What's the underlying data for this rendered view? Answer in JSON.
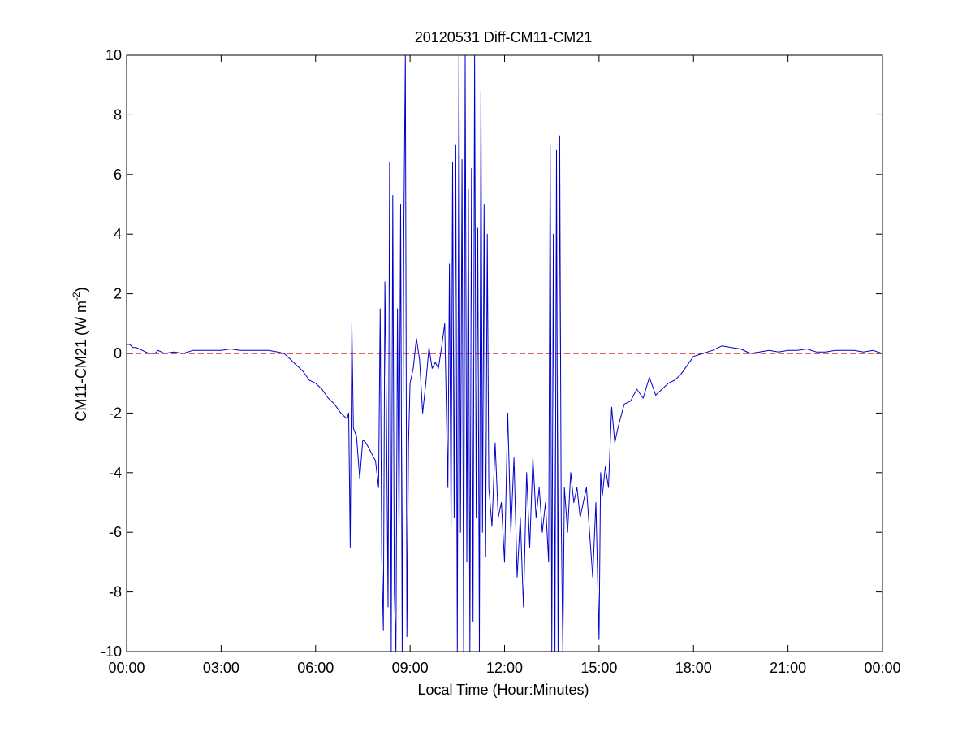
{
  "chart_data": {
    "type": "line",
    "title": "20120531 Diff-CM11-CM21",
    "xlabel": "Local Time (Hour:Minutes)",
    "ylabel": {
      "main": "CM11-CM21 (W m",
      "superscript": "-2",
      "suffix": ")"
    },
    "x_unit": "hours",
    "xlim": [
      0,
      24
    ],
    "ylim": [
      -10,
      10
    ],
    "x_ticks": [
      0,
      3,
      6,
      9,
      12,
      15,
      18,
      21,
      24
    ],
    "x_tick_labels": [
      "00:00",
      "03:00",
      "06:00",
      "09:00",
      "12:00",
      "15:00",
      "18:00",
      "21:00",
      "00:00"
    ],
    "y_ticks": [
      -10,
      -8,
      -6,
      -4,
      -2,
      0,
      2,
      4,
      6,
      8,
      10
    ],
    "y_tick_labels": [
      "-10",
      "-8",
      "-6",
      "-4",
      "-2",
      "0",
      "2",
      "4",
      "6",
      "8",
      "10"
    ],
    "grid": false,
    "reference_line": {
      "y": 0,
      "color": "#cc0000",
      "style": "dashed"
    },
    "series": [
      {
        "color": "#0000cc",
        "x": [
          0.0,
          0.1,
          0.2,
          0.3,
          0.5,
          0.7,
          0.9,
          1.0,
          1.2,
          1.5,
          1.8,
          2.1,
          2.4,
          2.7,
          3.0,
          3.3,
          3.6,
          3.9,
          4.2,
          4.5,
          4.8,
          5.0,
          5.2,
          5.4,
          5.6,
          5.8,
          6.0,
          6.2,
          6.4,
          6.6,
          6.8,
          6.9,
          7.0,
          7.05,
          7.1,
          7.15,
          7.2,
          7.3,
          7.4,
          7.5,
          7.6,
          7.7,
          7.8,
          7.9,
          8.0,
          8.05,
          8.1,
          8.15,
          8.2,
          8.25,
          8.3,
          8.35,
          8.4,
          8.45,
          8.5,
          8.55,
          8.6,
          8.65,
          8.7,
          8.75,
          8.8,
          8.85,
          8.9,
          8.95,
          9.0,
          9.1,
          9.2,
          9.3,
          9.4,
          9.5,
          9.6,
          9.7,
          9.8,
          9.9,
          10.0,
          10.1,
          10.2,
          10.25,
          10.3,
          10.35,
          10.4,
          10.45,
          10.5,
          10.55,
          10.6,
          10.65,
          10.7,
          10.75,
          10.8,
          10.85,
          10.9,
          10.95,
          11.0,
          11.05,
          11.1,
          11.15,
          11.2,
          11.25,
          11.3,
          11.35,
          11.4,
          11.45,
          11.5,
          11.6,
          11.7,
          11.8,
          11.9,
          12.0,
          12.1,
          12.2,
          12.3,
          12.4,
          12.5,
          12.6,
          12.7,
          12.8,
          12.9,
          13.0,
          13.1,
          13.2,
          13.3,
          13.4,
          13.45,
          13.5,
          13.55,
          13.6,
          13.65,
          13.7,
          13.75,
          13.8,
          13.85,
          13.9,
          14.0,
          14.1,
          14.2,
          14.3,
          14.4,
          14.5,
          14.6,
          14.7,
          14.8,
          14.9,
          15.0,
          15.05,
          15.1,
          15.2,
          15.3,
          15.4,
          15.5,
          15.6,
          15.8,
          16.0,
          16.2,
          16.4,
          16.6,
          16.8,
          17.0,
          17.2,
          17.4,
          17.6,
          17.8,
          18.0,
          18.3,
          18.6,
          18.9,
          19.2,
          19.5,
          19.8,
          20.1,
          20.4,
          20.7,
          21.0,
          21.3,
          21.6,
          21.9,
          22.2,
          22.5,
          22.8,
          23.1,
          23.4,
          23.7,
          24.0
        ],
        "y": [
          0.3,
          0.3,
          0.2,
          0.2,
          0.1,
          0.0,
          0.0,
          0.1,
          0.0,
          0.05,
          0.0,
          0.1,
          0.1,
          0.1,
          0.1,
          0.15,
          0.1,
          0.1,
          0.1,
          0.1,
          0.05,
          0.0,
          -0.2,
          -0.4,
          -0.6,
          -0.9,
          -1.0,
          -1.2,
          -1.5,
          -1.7,
          -2.0,
          -2.1,
          -2.2,
          -2.0,
          -6.5,
          1.0,
          -2.5,
          -2.8,
          -4.2,
          -2.9,
          -3.0,
          -3.2,
          -3.4,
          -3.6,
          -4.5,
          1.5,
          -6.8,
          -9.3,
          2.4,
          -2.0,
          -8.5,
          6.4,
          -10.0,
          5.3,
          -8.0,
          -10.0,
          1.5,
          -6.0,
          5.0,
          -10.0,
          4.0,
          10.0,
          -9.5,
          -3.0,
          -1.0,
          -0.5,
          0.5,
          -0.2,
          -2.0,
          -1.0,
          0.2,
          -0.5,
          -0.3,
          -0.5,
          0.2,
          1.0,
          -4.5,
          3.0,
          -5.8,
          6.4,
          -5.5,
          7.0,
          -10.0,
          10.0,
          -6.0,
          6.5,
          -10.0,
          10.0,
          -7.0,
          5.5,
          -10.0,
          6.2,
          -9.0,
          10.0,
          -5.5,
          4.2,
          -10.0,
          8.8,
          -6.0,
          5.0,
          -6.8,
          4.0,
          -4.5,
          -5.8,
          -3.0,
          -5.5,
          -5.0,
          -7.0,
          -2.0,
          -6.0,
          -3.5,
          -7.5,
          -5.5,
          -8.5,
          -4.0,
          -6.5,
          -3.5,
          -5.5,
          -4.5,
          -6.0,
          -5.0,
          -7.0,
          7.0,
          -10.0,
          4.0,
          -10.0,
          6.8,
          -10.0,
          7.3,
          -5.5,
          -10.0,
          -4.5,
          -6.0,
          -4.0,
          -5.0,
          -4.5,
          -5.5,
          -5.0,
          -4.5,
          -6.0,
          -7.5,
          -5.0,
          -9.6,
          -4.0,
          -4.8,
          -3.8,
          -4.5,
          -1.8,
          -3.0,
          -2.5,
          -1.7,
          -1.6,
          -1.2,
          -1.5,
          -0.8,
          -1.4,
          -1.2,
          -1.0,
          -0.9,
          -0.7,
          -0.4,
          -0.1,
          0.0,
          0.1,
          0.25,
          0.2,
          0.15,
          0.0,
          0.05,
          0.1,
          0.05,
          0.1,
          0.1,
          0.15,
          0.05,
          0.05,
          0.1,
          0.1,
          0.1,
          0.05,
          0.1,
          0.0
        ]
      }
    ]
  }
}
